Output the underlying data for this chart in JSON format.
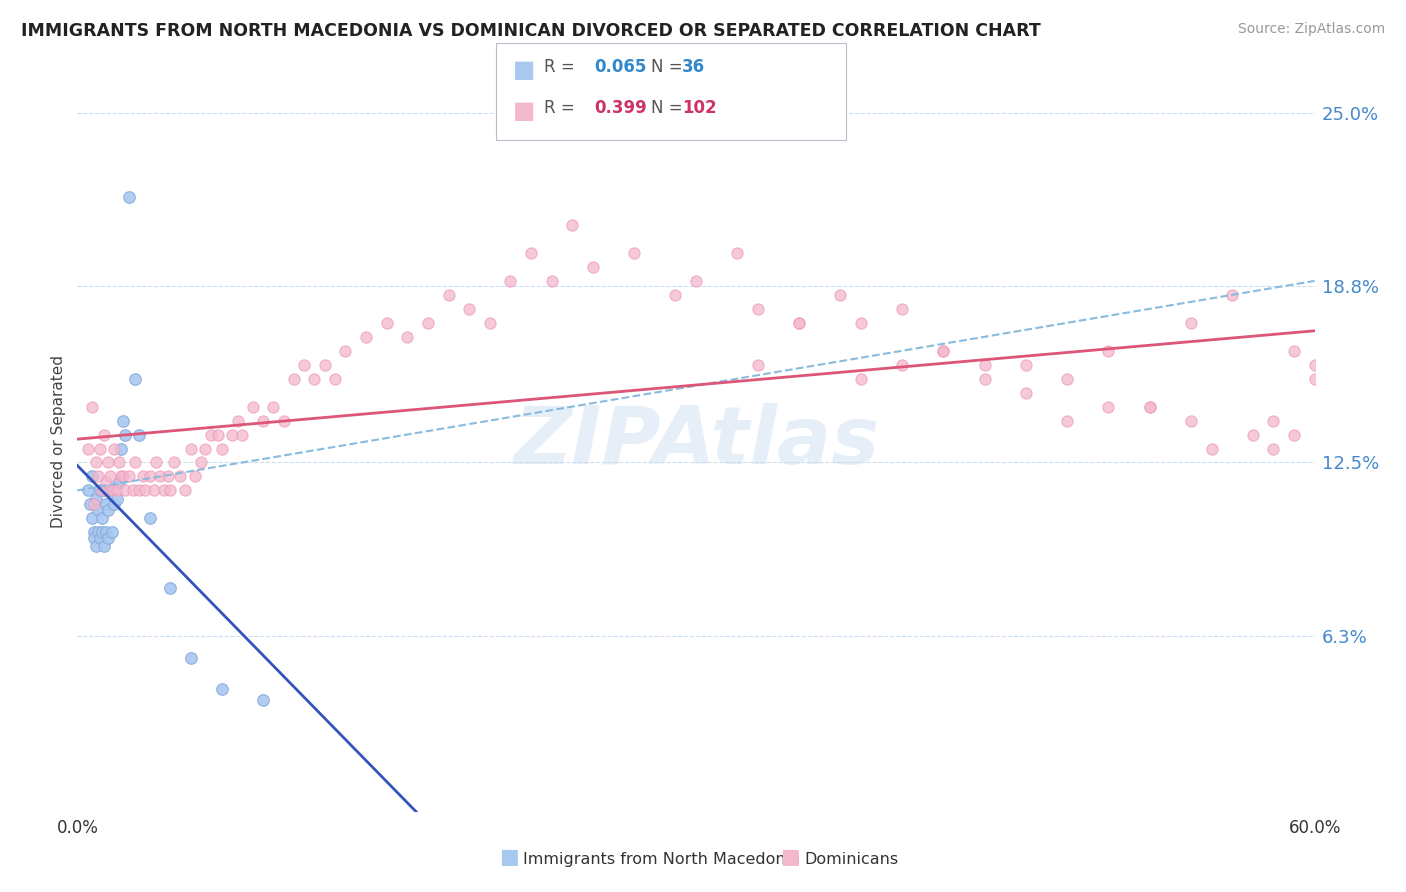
{
  "title": "IMMIGRANTS FROM NORTH MACEDONIA VS DOMINICAN DIVORCED OR SEPARATED CORRELATION CHART",
  "source": "Source: ZipAtlas.com",
  "ylabel": "Divorced or Separated",
  "r1": 0.065,
  "n1": 36,
  "r2": 0.399,
  "n2": 102,
  "color1": "#a8c8f0",
  "color2": "#f4b8cc",
  "trendline1_solid_color": "#3355bb",
  "trendline1_dashed_color": "#88bbdd",
  "trendline2_color": "#dd5577",
  "xmin": 0.0,
  "xmax": 0.6,
  "ymin": 0.0,
  "ymax": 0.265,
  "ytick_vals": [
    0.063,
    0.125,
    0.188,
    0.25
  ],
  "ytick_labels": [
    "6.3%",
    "12.5%",
    "18.8%",
    "25.0%"
  ],
  "xtick_vals": [
    0.0,
    0.6
  ],
  "xtick_labels": [
    "0.0%",
    "60.0%"
  ],
  "watermark": "ZIPAtlas",
  "legend_label1": "Immigrants from North Macedonia",
  "legend_label2": "Dominicans",
  "blue_x": [
    0.005,
    0.006,
    0.007,
    0.007,
    0.008,
    0.008,
    0.009,
    0.009,
    0.01,
    0.01,
    0.011,
    0.011,
    0.012,
    0.012,
    0.013,
    0.013,
    0.014,
    0.014,
    0.015,
    0.015,
    0.016,
    0.017,
    0.018,
    0.019,
    0.02,
    0.021,
    0.022,
    0.023,
    0.025,
    0.028,
    0.03,
    0.035,
    0.045,
    0.055,
    0.07,
    0.09
  ],
  "blue_y": [
    0.115,
    0.11,
    0.12,
    0.105,
    0.1,
    0.098,
    0.112,
    0.095,
    0.108,
    0.1,
    0.115,
    0.098,
    0.1,
    0.105,
    0.115,
    0.095,
    0.11,
    0.1,
    0.108,
    0.098,
    0.115,
    0.1,
    0.11,
    0.112,
    0.118,
    0.13,
    0.14,
    0.135,
    0.22,
    0.155,
    0.135,
    0.105,
    0.08,
    0.055,
    0.044,
    0.04
  ],
  "pink_x": [
    0.005,
    0.007,
    0.008,
    0.009,
    0.01,
    0.011,
    0.012,
    0.013,
    0.014,
    0.015,
    0.016,
    0.017,
    0.018,
    0.019,
    0.02,
    0.021,
    0.022,
    0.023,
    0.025,
    0.027,
    0.028,
    0.03,
    0.032,
    0.033,
    0.035,
    0.037,
    0.038,
    0.04,
    0.042,
    0.044,
    0.045,
    0.047,
    0.05,
    0.052,
    0.055,
    0.057,
    0.06,
    0.062,
    0.065,
    0.068,
    0.07,
    0.075,
    0.078,
    0.08,
    0.085,
    0.09,
    0.095,
    0.1,
    0.105,
    0.11,
    0.115,
    0.12,
    0.125,
    0.13,
    0.14,
    0.15,
    0.16,
    0.17,
    0.18,
    0.19,
    0.2,
    0.21,
    0.22,
    0.23,
    0.24,
    0.25,
    0.27,
    0.29,
    0.3,
    0.32,
    0.33,
    0.35,
    0.37,
    0.38,
    0.4,
    0.42,
    0.44,
    0.46,
    0.48,
    0.5,
    0.52,
    0.54,
    0.55,
    0.57,
    0.58,
    0.59,
    0.6,
    0.6,
    0.59,
    0.58,
    0.56,
    0.54,
    0.52,
    0.5,
    0.48,
    0.46,
    0.44,
    0.42,
    0.4,
    0.38,
    0.35,
    0.33
  ],
  "pink_y": [
    0.13,
    0.145,
    0.11,
    0.125,
    0.12,
    0.13,
    0.115,
    0.135,
    0.118,
    0.125,
    0.12,
    0.115,
    0.13,
    0.115,
    0.125,
    0.12,
    0.12,
    0.115,
    0.12,
    0.115,
    0.125,
    0.115,
    0.12,
    0.115,
    0.12,
    0.115,
    0.125,
    0.12,
    0.115,
    0.12,
    0.115,
    0.125,
    0.12,
    0.115,
    0.13,
    0.12,
    0.125,
    0.13,
    0.135,
    0.135,
    0.13,
    0.135,
    0.14,
    0.135,
    0.145,
    0.14,
    0.145,
    0.14,
    0.155,
    0.16,
    0.155,
    0.16,
    0.155,
    0.165,
    0.17,
    0.175,
    0.17,
    0.175,
    0.185,
    0.18,
    0.175,
    0.19,
    0.2,
    0.19,
    0.21,
    0.195,
    0.2,
    0.185,
    0.19,
    0.2,
    0.18,
    0.175,
    0.185,
    0.175,
    0.18,
    0.165,
    0.16,
    0.15,
    0.155,
    0.145,
    0.145,
    0.14,
    0.13,
    0.135,
    0.13,
    0.135,
    0.155,
    0.16,
    0.165,
    0.14,
    0.185,
    0.175,
    0.145,
    0.165,
    0.14,
    0.16,
    0.155,
    0.165,
    0.16,
    0.155,
    0.175,
    0.16
  ]
}
